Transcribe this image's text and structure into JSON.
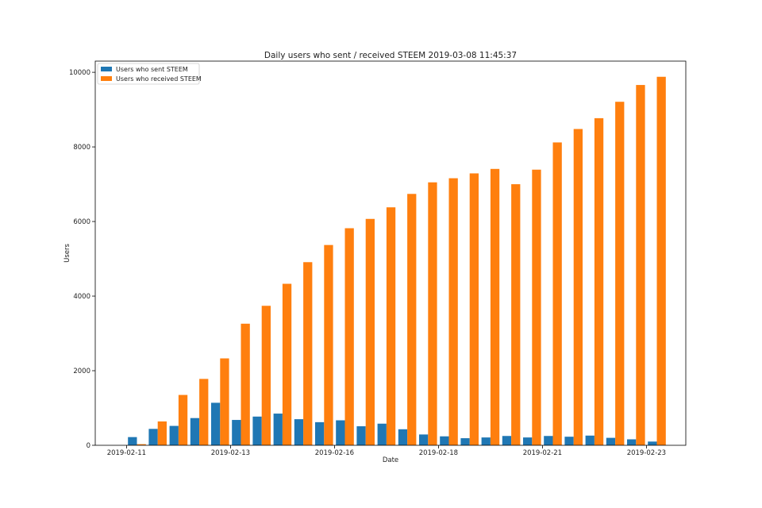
{
  "chart_data": {
    "type": "bar",
    "title": "Daily users who sent / received STEEM 2019-03-08 11:45:37",
    "xlabel": "Date",
    "ylabel": "Users",
    "ylim": [
      0,
      10300
    ],
    "yticks": [
      0,
      2000,
      4000,
      6000,
      8000,
      10000
    ],
    "xtick_labels": [
      {
        "label": "2019-02-11",
        "index": 0
      },
      {
        "label": "2019-02-13",
        "index": 5
      },
      {
        "label": "2019-02-16",
        "index": 10
      },
      {
        "label": "2019-02-18",
        "index": 15
      },
      {
        "label": "2019-02-21",
        "index": 20
      },
      {
        "label": "2019-02-23",
        "index": 25
      }
    ],
    "legend_position": "top-left",
    "series": [
      {
        "name": "Users who sent STEEM",
        "color": "#1f77b4",
        "values": [
          220,
          440,
          520,
          730,
          1140,
          680,
          770,
          850,
          700,
          620,
          670,
          510,
          580,
          430,
          290,
          240,
          190,
          210,
          250,
          210,
          250,
          230,
          260,
          200,
          160,
          100
        ]
      },
      {
        "name": "Users who received STEEM",
        "color": "#ff7f0e",
        "values": [
          30,
          640,
          1350,
          1780,
          2330,
          3260,
          3740,
          4330,
          4910,
          5370,
          5820,
          6070,
          6380,
          6740,
          7050,
          7160,
          7290,
          7410,
          7000,
          7390,
          8120,
          8480,
          8770,
          9210,
          9660,
          9880
        ]
      }
    ]
  }
}
